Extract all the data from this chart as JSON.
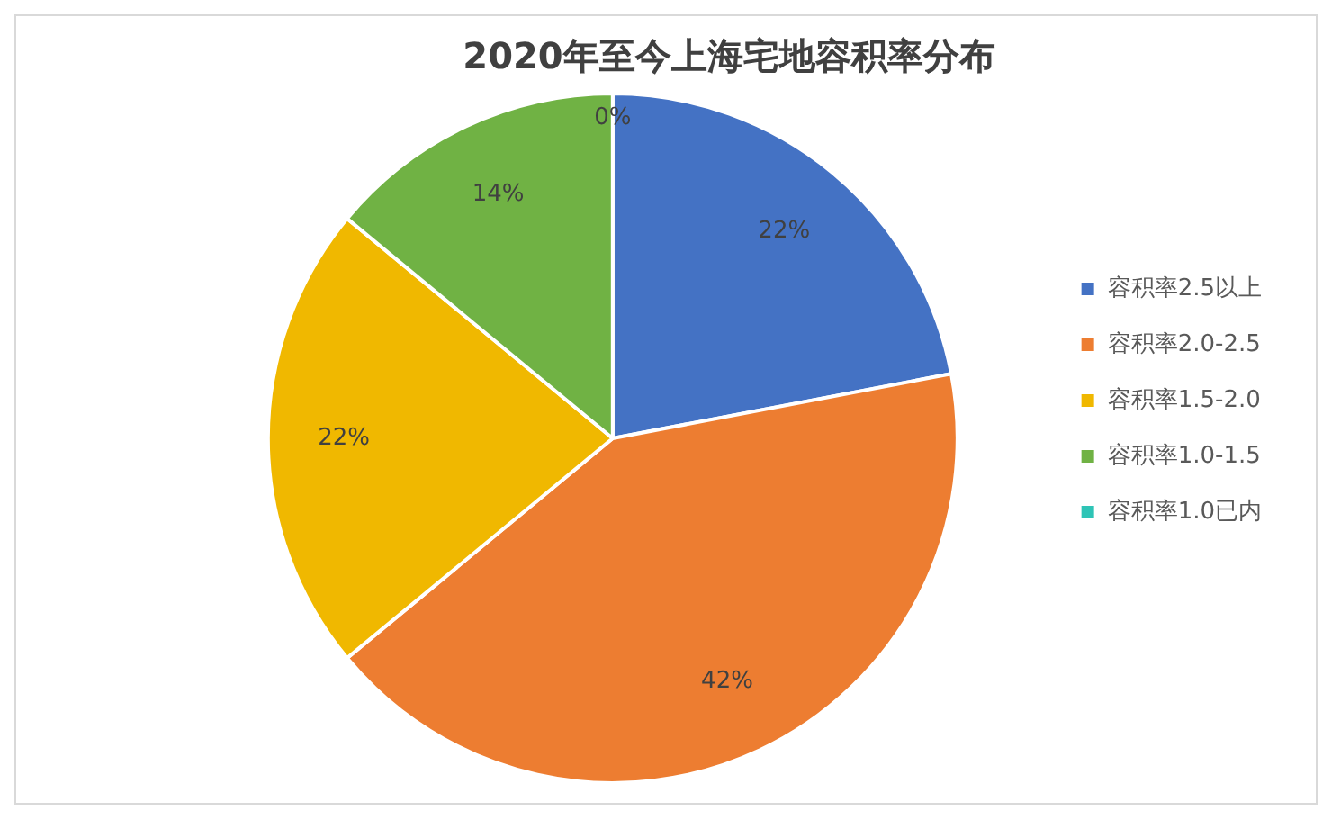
{
  "chart_data": {
    "type": "pie",
    "title": "2020年至今上海宅地容积率分布",
    "categories": [
      "容积率2.5以上",
      "容积率2.0-2.5",
      "容积率1.5-2.0",
      "容积率1.0-1.5",
      "容积率1.0已内"
    ],
    "values": [
      22,
      42,
      22,
      14,
      0
    ],
    "colors": [
      "#4472c4",
      "#ed7d31",
      "#f0b800",
      "#70b244",
      "#2ec4b6"
    ],
    "value_labels": [
      "22%",
      "42%",
      "22%",
      "14%",
      "0%"
    ],
    "legend": "right"
  }
}
